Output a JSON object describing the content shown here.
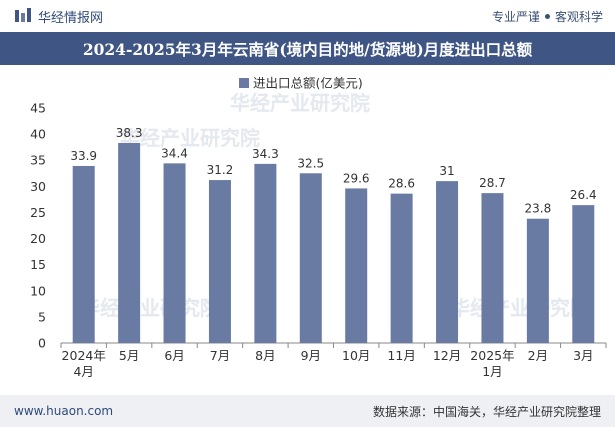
{
  "header": {
    "brand": "华经情报网",
    "slogan_left": "专业严谨",
    "slogan_right": "客观科学"
  },
  "title": "2024-2025年3月年云南省(境内目的地/货源地)月度进出口总额",
  "watermark": "华经产业研究院",
  "footer": {
    "website": "www.huaon.com",
    "source": "数据来源：中国海关，华经产业研究院整理"
  },
  "colors": {
    "bar": "#6a7ba3",
    "title_bg": "#3f5584",
    "footer_bg": "#eef0f4"
  },
  "chart_data": {
    "type": "bar",
    "title": "2024-2025年3月年云南省(境内目的地/货源地)月度进出口总额",
    "categories": [
      [
        "2024年",
        "4月"
      ],
      [
        "5月"
      ],
      [
        "6月"
      ],
      [
        "7月"
      ],
      [
        "8月"
      ],
      [
        "9月"
      ],
      [
        "10月"
      ],
      [
        "11月"
      ],
      [
        "12月"
      ],
      [
        "2025年",
        "1月"
      ],
      [
        "2月"
      ],
      [
        "3月"
      ]
    ],
    "series": [
      {
        "name": "进出口总额(亿美元)",
        "values": [
          33.9,
          38.3,
          34.4,
          31.2,
          34.3,
          32.5,
          29.6,
          28.6,
          31,
          28.7,
          23.8,
          26.4
        ]
      }
    ],
    "value_labels": [
      "33.9",
      "38.3",
      "34.4",
      "31.2",
      "34.3",
      "32.5",
      "29.6",
      "28.6",
      "31",
      "28.7",
      "23.8",
      "26.4"
    ],
    "yticks": [
      "0",
      "5",
      "10",
      "15",
      "20",
      "25",
      "30",
      "35",
      "40",
      "45"
    ],
    "ylim": [
      0,
      45
    ],
    "legend_position": "top-center",
    "xlabel": "",
    "ylabel": ""
  }
}
